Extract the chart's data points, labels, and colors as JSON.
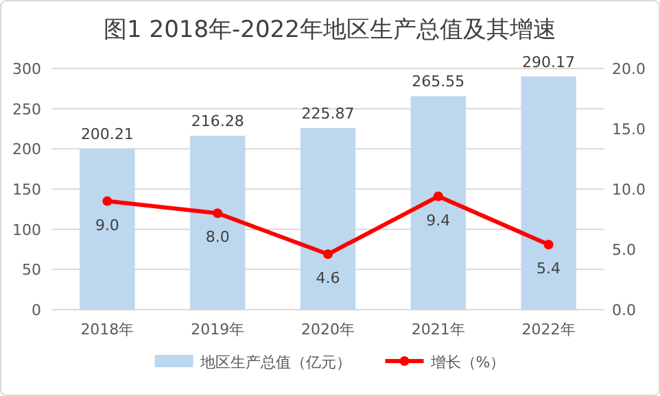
{
  "chart_data": {
    "type": "bar",
    "title": "图1 2018年-2022年地区生产总值及其增速",
    "categories": [
      "2018年",
      "2019年",
      "2020年",
      "2021年",
      "2022年"
    ],
    "series": [
      {
        "name": "地区生产总值（亿元）",
        "color": "#bdd7ee",
        "values": [
          200.21,
          216.28,
          225.87,
          265.55,
          290.17
        ],
        "value_labels": [
          "200.21",
          "216.28",
          "225.87",
          "265.55",
          "290.17"
        ]
      },
      {
        "name": "增长（%）",
        "type": "line",
        "axis": "y2",
        "color": "#ff0000",
        "marker": "circle",
        "values": [
          9.0,
          8.0,
          4.6,
          9.4,
          5.4
        ],
        "value_labels": [
          "9.0",
          "8.0",
          "4.6",
          "9.4",
          "5.4"
        ]
      }
    ],
    "ylim": [
      0,
      300
    ],
    "yticks": [
      0,
      50,
      100,
      150,
      200,
      250,
      300
    ],
    "y2lim": [
      0,
      20
    ],
    "y2ticks": [
      {
        "value": 0,
        "label": "0.0"
      },
      {
        "value": 5,
        "label": "5.0"
      },
      {
        "value": 10,
        "label": "10.0"
      },
      {
        "value": 15,
        "label": "15.0"
      },
      {
        "value": 20,
        "label": "20.0"
      }
    ],
    "grid": "y",
    "legend": "bottom"
  }
}
